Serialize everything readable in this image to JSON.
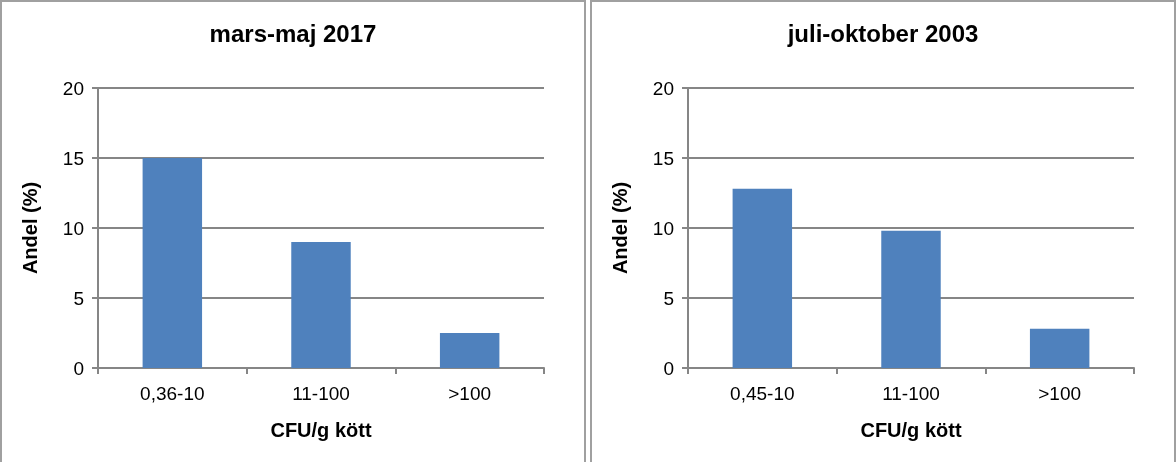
{
  "chart_data": [
    {
      "type": "bar",
      "title": "mars-maj 2017",
      "xlabel": "CFU/g kött",
      "ylabel": "Andel (%)",
      "categories": [
        "0,36-10",
        "11-100",
        ">100"
      ],
      "values": [
        15,
        9,
        2.5
      ],
      "color": "#4f81bd",
      "ylim": [
        0,
        20
      ],
      "yticks": [
        0,
        5,
        10,
        15,
        20
      ],
      "grid": "y"
    },
    {
      "type": "bar",
      "title": "juli-oktober 2003",
      "xlabel": "CFU/g kött",
      "ylabel": "Andel (%)",
      "categories": [
        "0,45-10",
        "11-100",
        ">100"
      ],
      "values": [
        12.8,
        9.8,
        2.8
      ],
      "color": "#4f81bd",
      "ylim": [
        0,
        20
      ],
      "yticks": [
        0,
        5,
        10,
        15,
        20
      ],
      "grid": "y"
    }
  ]
}
